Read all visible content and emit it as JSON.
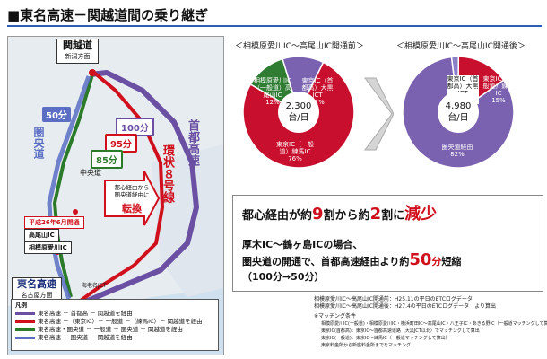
{
  "title": "■東名高速－関越道間の乗り継ぎ",
  "map": {
    "kanetsu_name": "関越道",
    "kanetsu_dir": "新潟方面",
    "time_50": "50分",
    "time_100": "100分",
    "time_95": "95分",
    "time_85": "85分",
    "ken_o_label": "圏央道",
    "chuo_label": "中央道",
    "tenkan_note": "都心経由から圏央道経由に",
    "tenkan": "転換",
    "kanjo8": "環状８号線",
    "shuto": "首都高速",
    "heisei_box": "平成26年6月開通",
    "takao_box": "高尾山IC",
    "sagamihara_box": "相模原愛川IC",
    "tomei_name": "東名高速",
    "tomei_dir": "名古屋方面",
    "ebina_label": "海老名JCT",
    "legend_title": "凡例",
    "legend": [
      {
        "label": "東名高速 － 首都高 － 関越道を経由",
        "color": "#6a4fa3"
      },
      {
        "label": "東名高速 －（東京IC）－ 一般道 －（練馬IC）－ 関越道を経由",
        "color": "#d0101c"
      },
      {
        "label": "東名高速・圏央道 － 一般道 － 圏央道 － 関越道を経由",
        "color": "#2a7a2a"
      },
      {
        "label": "東名高速 － 圏央道 － 関越道を経由",
        "color": "#5b6ec4"
      }
    ]
  },
  "charts": {
    "before_title": "＜相模原愛川IC～高尾山IC開通前＞",
    "after_title": "＜相模原愛川IC～高尾山IC開通後＞",
    "before_total": "2,300",
    "before_unit": "台/日",
    "after_total": "4,980",
    "after_unit": "台/日",
    "before_slices": {
      "ippando_takao": "相模原愛川IC（一般道）高尾山IC\n12%",
      "ohashi": "東京IC（首都高）大黒JCT\n12%",
      "nerima": "東京IC（一般道）練馬IC\n76%"
    },
    "after_slices": {
      "ohashi": "東京IC（首都高）大黒JCT\n2%",
      "nerima": "東京IC（一般道）練馬IC\n15%",
      "kenodo": "圏央道経由\n82%"
    }
  },
  "chart_data": [
    {
      "type": "pie",
      "title": "＜相模原愛川IC～高尾山IC開通前＞",
      "total": "2,300台/日",
      "slices": [
        {
          "name": "相模原愛川IC（一般道）高尾山IC",
          "value": 12,
          "color": "#2e7d32"
        },
        {
          "name": "東京IC（首都高）大黒JCT",
          "value": 12,
          "color": "#7b62b0"
        },
        {
          "name": "東京IC（一般道）練馬IC",
          "value": 76,
          "color": "#c8102e"
        }
      ]
    },
    {
      "type": "pie",
      "title": "＜相模原愛川IC～高尾山IC開通後＞",
      "total": "4,980台/日",
      "slices": [
        {
          "name": "東京IC（首都高）大黒JCT",
          "value": 2,
          "color": "#8a80c8"
        },
        {
          "name": "東京IC（一般道）練馬IC",
          "value": 15,
          "color": "#c8102e"
        },
        {
          "name": "圏央道経由",
          "value": 82,
          "color": "#7b62b0"
        }
      ]
    }
  ],
  "message": {
    "line1_a": "都心経由が約",
    "line1_b": "9",
    "line1_c": "割から約",
    "line1_d": "2",
    "line1_e": "割に",
    "line1_f": "減少",
    "line2": "厚木IC～鶴ヶ島ICの場合、",
    "line3_a": "圏央道の開通で、首都高速経由より約",
    "line3_b": "50",
    "line3_c": "分",
    "line3_d": "短縮",
    "line4": "（100分→50分）"
  },
  "notes": {
    "n1": "相模原愛川IC～高尾山IC開通前：H25.11の平日のETCログデータ",
    "n2": "相模原愛川IC～高尾山IC開通後：H27.4の平日のETCログデータ　より算出",
    "n3": "※マッチング条件",
    "n4": "相模原愛川IC(一般道)・相模原愛川IC・横浜町田IC～高尾山IC・八王子IC・あきる野IC（一般道マッチングして算出）",
    "n5": "東京IC(首都高)：東京IC～首都高速道路（大黒JCT以北）でマッチングして算出",
    "n6": "東京IC(一般道)：東京IC～練馬IC（一般道マッチングして算出）",
    "n7": "東京料金所から新座料金所までをマッチング"
  }
}
